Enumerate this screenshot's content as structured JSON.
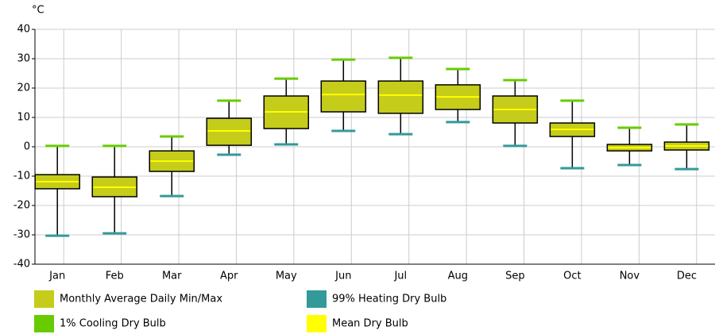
{
  "chart_data": {
    "type": "box",
    "y_unit": "°C",
    "categories": [
      "Jan",
      "Feb",
      "Mar",
      "Apr",
      "May",
      "Jun",
      "Jul",
      "Aug",
      "Sep",
      "Oct",
      "Nov",
      "Dec"
    ],
    "series": [
      {
        "name": "Monthly Average Daily Min/Max",
        "color": "#c5cc1a",
        "values": [
          [
            -14.3,
            -9.5
          ],
          [
            -17.0,
            -10.3
          ],
          [
            -8.4,
            -1.4
          ],
          [
            0.5,
            9.7
          ],
          [
            6.2,
            17.3
          ],
          [
            11.9,
            22.4
          ],
          [
            11.4,
            22.4
          ],
          [
            12.7,
            21.1
          ],
          [
            8.1,
            17.3
          ],
          [
            3.5,
            8.1
          ],
          [
            -1.4,
            0.8
          ],
          [
            -1.1,
            1.6
          ]
        ]
      },
      {
        "name": "99% Heating Dry Bulb",
        "color": "#339999",
        "values": [
          -30.3,
          -29.5,
          -16.8,
          -2.7,
          0.8,
          5.4,
          4.3,
          8.4,
          0.3,
          -7.3,
          -6.2,
          -7.6
        ]
      },
      {
        "name": "1% Cooling Dry Bulb",
        "color": "#66cc00",
        "values": [
          0.3,
          0.3,
          3.5,
          15.7,
          23.2,
          29.7,
          30.3,
          26.5,
          22.7,
          15.7,
          6.5,
          7.6
        ]
      },
      {
        "name": "Mean Dry Bulb",
        "color": "#ffff00",
        "values": [
          -11.9,
          -13.8,
          -4.9,
          5.4,
          11.9,
          17.8,
          17.6,
          17.0,
          12.7,
          5.9,
          -0.3,
          0.3
        ]
      }
    ],
    "ylim": [
      -40,
      40
    ],
    "yticks": [
      -40,
      -30,
      -20,
      -10,
      0,
      10,
      20,
      30,
      40
    ],
    "grid": true
  }
}
